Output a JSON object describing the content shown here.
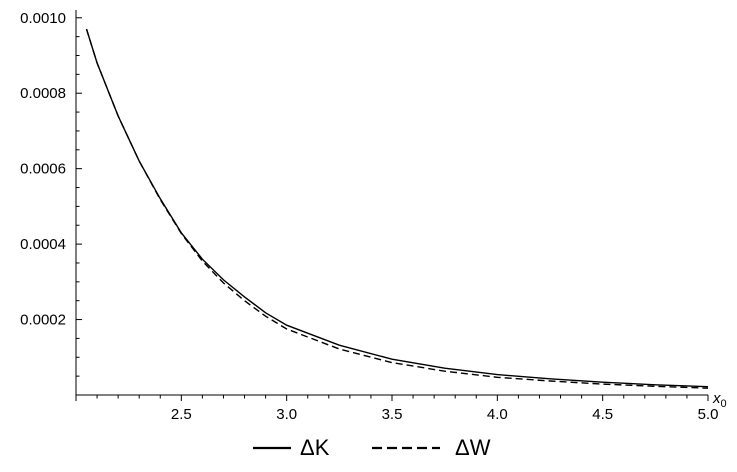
{
  "chart_data": {
    "type": "line",
    "title": "",
    "xlabel": "x",
    "xlabel_sub": "0",
    "ylabel": "",
    "xlim": [
      2.0,
      5.0
    ],
    "ylim": [
      0.0,
      0.00101
    ],
    "x_ticks_major": [
      2.5,
      3.0,
      3.5,
      4.0,
      4.5,
      5.0
    ],
    "x_tick_labels": [
      "2.5",
      "3.0",
      "3.5",
      "4.0",
      "4.5",
      "5.0"
    ],
    "y_ticks_major": [
      0.0002,
      0.0004,
      0.0006,
      0.0008,
      0.001
    ],
    "y_tick_labels": [
      "0.0002",
      "0.0004",
      "0.0006",
      "0.0008",
      "0.0010"
    ],
    "grid": false,
    "legend_position": "bottom-center",
    "colors": {
      "line": "#000000",
      "axis": "#000000"
    },
    "series": [
      {
        "name": "ΔK",
        "style": "solid",
        "x": [
          2.05,
          2.1,
          2.2,
          2.3,
          2.4,
          2.5,
          2.6,
          2.7,
          2.8,
          2.9,
          3.0,
          3.25,
          3.5,
          3.75,
          4.0,
          4.25,
          4.5,
          4.75,
          5.0
        ],
        "y": [
          0.00097,
          0.00088,
          0.00074,
          0.00062,
          0.00052,
          0.00043,
          0.00036,
          0.000305,
          0.00026,
          0.000218,
          0.000185,
          0.000132,
          9.5e-05,
          7.1e-05,
          5.4e-05,
          4.3e-05,
          3.4e-05,
          2.7e-05,
          2.2e-05
        ]
      },
      {
        "name": "ΔW",
        "style": "dashed",
        "x": [
          2.05,
          2.1,
          2.2,
          2.3,
          2.4,
          2.5,
          2.6,
          2.7,
          2.8,
          2.9,
          3.0,
          3.25,
          3.5,
          3.75,
          4.0,
          4.25,
          4.5,
          4.75,
          5.0
        ],
        "y": [
          0.00097,
          0.00088,
          0.00074,
          0.00062,
          0.000518,
          0.000428,
          0.000355,
          0.000297,
          0.00025,
          0.000209,
          0.000175,
          0.000122,
          8.6e-05,
          6.3e-05,
          4.7e-05,
          3.7e-05,
          2.9e-05,
          2.3e-05,
          1.8e-05
        ]
      }
    ]
  }
}
